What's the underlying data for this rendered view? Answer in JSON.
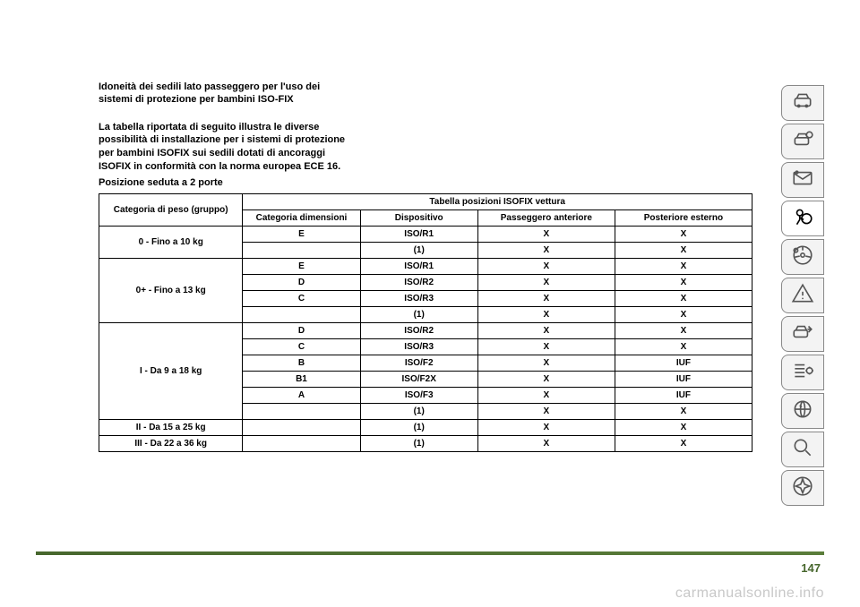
{
  "heading": "Idoneità dei sedili lato passeggero per l'uso dei sistemi di protezione per bambini ISO-FIX",
  "paragraph": "La tabella riportata di seguito illustra le diverse possibilità di installazione per i sistemi di protezione per bambini ISOFIX sui sedili dotati di ancoraggi ISOFIX in conformità con la norma europea ECE 16.",
  "subline": "Posizione seduta a 2 porte",
  "table": {
    "header": {
      "col0": "Categoria di peso (gruppo)",
      "span_title": "Tabella posizioni ISOFIX vettura",
      "col1": "Categoria dimensioni",
      "col2": "Dispositivo",
      "col3": "Passeggero anteriore",
      "col4": "Posteriore esterno"
    },
    "groups": [
      {
        "label": "0 - Fino a 10 kg",
        "rows": [
          {
            "c1": "E",
            "c2": "ISO/R1",
            "c3": "X",
            "c4": "X"
          },
          {
            "c1": "",
            "c2": "(1)",
            "c3": "X",
            "c4": "X"
          }
        ]
      },
      {
        "label": "0+ - Fino a 13 kg",
        "rows": [
          {
            "c1": "E",
            "c2": "ISO/R1",
            "c3": "X",
            "c4": "X"
          },
          {
            "c1": "D",
            "c2": "ISO/R2",
            "c3": "X",
            "c4": "X"
          },
          {
            "c1": "C",
            "c2": "ISO/R3",
            "c3": "X",
            "c4": "X"
          },
          {
            "c1": "",
            "c2": "(1)",
            "c3": "X",
            "c4": "X"
          }
        ]
      },
      {
        "label": "I - Da 9 a 18 kg",
        "rows": [
          {
            "c1": "D",
            "c2": "ISO/R2",
            "c3": "X",
            "c4": "X"
          },
          {
            "c1": "C",
            "c2": "ISO/R3",
            "c3": "X",
            "c4": "X"
          },
          {
            "c1": "B",
            "c2": "ISO/F2",
            "c3": "X",
            "c4": "IUF"
          },
          {
            "c1": "B1",
            "c2": "ISO/F2X",
            "c3": "X",
            "c4": "IUF"
          },
          {
            "c1": "A",
            "c2": "ISO/F3",
            "c3": "X",
            "c4": "IUF"
          },
          {
            "c1": "",
            "c2": "(1)",
            "c3": "X",
            "c4": "X"
          }
        ]
      },
      {
        "label": "II - Da 15 a 25 kg",
        "rows": [
          {
            "c1": "",
            "c2": "(1)",
            "c3": "X",
            "c4": "X"
          }
        ]
      },
      {
        "label": "III - Da 22 a 36 kg",
        "rows": [
          {
            "c1": "",
            "c2": "(1)",
            "c3": "X",
            "c4": "X"
          }
        ]
      }
    ]
  },
  "sidebar_icons": [
    "car-front",
    "car-info",
    "mail",
    "airbag",
    "steering",
    "warning-triangle",
    "car-service",
    "list-settings",
    "media",
    "search",
    "compass"
  ],
  "active_tab_index": 3,
  "page_number": "147",
  "watermark": "carmanualsonline.info",
  "colors": {
    "accent": "#47672d",
    "tab_border": "#888888",
    "tab_bg": "#f3f3f3",
    "icon": "#555555",
    "watermark": "#c8c8c8"
  }
}
